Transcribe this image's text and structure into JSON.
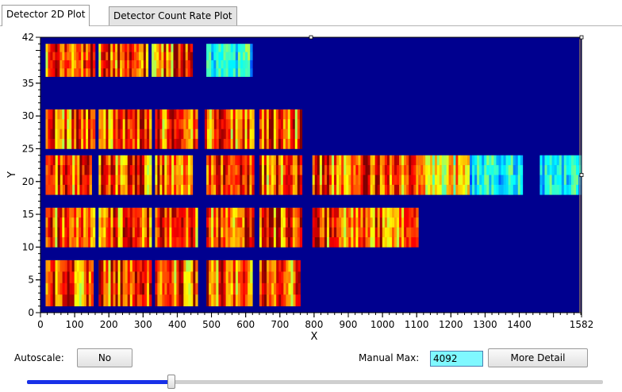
{
  "tabs": [
    {
      "label": "Detector 2D Plot",
      "active": true
    },
    {
      "label": "Detector Count Rate Plot",
      "active": false
    }
  ],
  "chart_data": {
    "type": "heatmap",
    "title": "",
    "xlabel": "X",
    "ylabel": "Y",
    "xlim": [
      0,
      1582
    ],
    "ylim": [
      0,
      42
    ],
    "x_ticks": [
      "0",
      "100",
      "200",
      "300",
      "400",
      "500",
      "600",
      "700",
      "800",
      "900",
      "1000",
      "1100",
      "1200",
      "1300",
      "1400",
      "1582"
    ],
    "y_ticks": [
      "0",
      "5",
      "10",
      "15",
      "20",
      "25",
      "30",
      "35",
      "42"
    ],
    "colormap": "jet",
    "background_color": "#00008f",
    "modules": [
      {
        "x0": 15,
        "x1": 160,
        "y0": 36,
        "y1": 41,
        "level": "high"
      },
      {
        "x0": 170,
        "x1": 315,
        "y0": 36,
        "y1": 41,
        "level": "high"
      },
      {
        "x0": 325,
        "x1": 445,
        "y0": 36,
        "y1": 41,
        "level": "high"
      },
      {
        "x0": 485,
        "x1": 620,
        "y0": 36,
        "y1": 41,
        "level": "low"
      },
      {
        "x0": 15,
        "x1": 160,
        "y0": 25,
        "y1": 31,
        "level": "high"
      },
      {
        "x0": 170,
        "x1": 325,
        "y0": 25,
        "y1": 31,
        "level": "high"
      },
      {
        "x0": 335,
        "x1": 460,
        "y0": 25,
        "y1": 31,
        "level": "high"
      },
      {
        "x0": 480,
        "x1": 625,
        "y0": 25,
        "y1": 31,
        "level": "high"
      },
      {
        "x0": 640,
        "x1": 765,
        "y0": 25,
        "y1": 31,
        "level": "high"
      },
      {
        "x0": 15,
        "x1": 150,
        "y0": 18,
        "y1": 24,
        "level": "high"
      },
      {
        "x0": 170,
        "x1": 325,
        "y0": 18,
        "y1": 24,
        "level": "high"
      },
      {
        "x0": 335,
        "x1": 445,
        "y0": 18,
        "y1": 24,
        "level": "high"
      },
      {
        "x0": 485,
        "x1": 625,
        "y0": 18,
        "y1": 24,
        "level": "high"
      },
      {
        "x0": 640,
        "x1": 765,
        "y0": 18,
        "y1": 24,
        "level": "high"
      },
      {
        "x0": 795,
        "x1": 950,
        "y0": 18,
        "y1": 24,
        "level": "high"
      },
      {
        "x0": 950,
        "x1": 1105,
        "y0": 18,
        "y1": 24,
        "level": "high"
      },
      {
        "x0": 1105,
        "x1": 1255,
        "y0": 18,
        "y1": 24,
        "level": "mid"
      },
      {
        "x0": 1255,
        "x1": 1410,
        "y0": 18,
        "y1": 24,
        "level": "low"
      },
      {
        "x0": 1460,
        "x1": 1580,
        "y0": 18,
        "y1": 24,
        "level": "low"
      },
      {
        "x0": 15,
        "x1": 160,
        "y0": 10,
        "y1": 16,
        "level": "high"
      },
      {
        "x0": 170,
        "x1": 325,
        "y0": 10,
        "y1": 16,
        "level": "high"
      },
      {
        "x0": 335,
        "x1": 460,
        "y0": 10,
        "y1": 16,
        "level": "high"
      },
      {
        "x0": 485,
        "x1": 625,
        "y0": 10,
        "y1": 16,
        "level": "high"
      },
      {
        "x0": 640,
        "x1": 765,
        "y0": 10,
        "y1": 16,
        "level": "high"
      },
      {
        "x0": 795,
        "x1": 950,
        "y0": 10,
        "y1": 16,
        "level": "high"
      },
      {
        "x0": 950,
        "x1": 1105,
        "y0": 10,
        "y1": 16,
        "level": "high"
      },
      {
        "x0": 15,
        "x1": 155,
        "y0": 1,
        "y1": 8,
        "level": "high"
      },
      {
        "x0": 170,
        "x1": 325,
        "y0": 1,
        "y1": 8,
        "level": "high"
      },
      {
        "x0": 335,
        "x1": 460,
        "y0": 1,
        "y1": 8,
        "level": "high"
      },
      {
        "x0": 485,
        "x1": 620,
        "y0": 1,
        "y1": 8,
        "level": "high"
      },
      {
        "x0": 640,
        "x1": 760,
        "y0": 1,
        "y1": 8,
        "level": "high"
      }
    ]
  },
  "controls": {
    "autoscale_label": "Autoscale:",
    "autoscale_value": "No",
    "manual_max_label": "Manual Max:",
    "manual_max_value": "4092",
    "more_detail_label": "More Detail",
    "slider_value": 0.25
  }
}
